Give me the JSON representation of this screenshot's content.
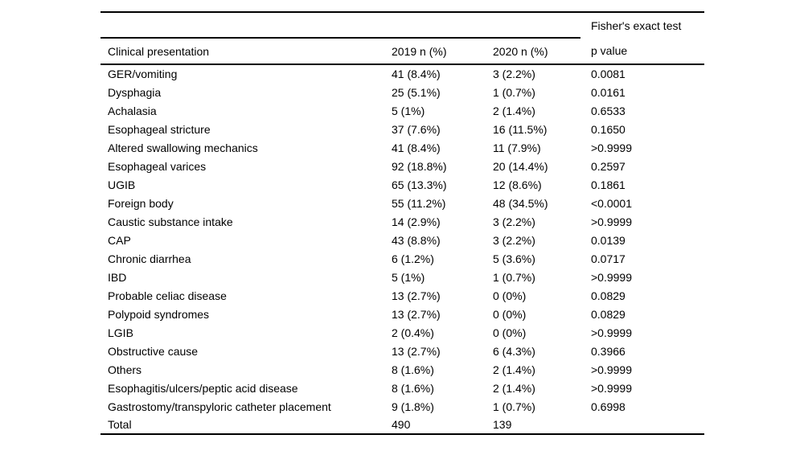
{
  "page": {
    "background_color": "#ffffff",
    "text_color": "#000000",
    "rule_color": "#000000"
  },
  "table": {
    "spanner_label": "Fisher's exact test",
    "columns": [
      "Clinical presentation",
      "2019 n (%)",
      "2020 n (%)",
      "p value"
    ],
    "rows": [
      [
        "GER/vomiting",
        "41 (8.4%)",
        "3 (2.2%)",
        "0.0081"
      ],
      [
        "Dysphagia",
        "25 (5.1%)",
        "1 (0.7%)",
        "0.0161"
      ],
      [
        "Achalasia",
        "5 (1%)",
        "2 (1.4%)",
        "0.6533"
      ],
      [
        "Esophageal stricture",
        "37 (7.6%)",
        "16 (11.5%)",
        "0.1650"
      ],
      [
        "Altered swallowing mechanics",
        "41 (8.4%)",
        "11 (7.9%)",
        ">0.9999"
      ],
      [
        "Esophageal varices",
        "92 (18.8%)",
        "20 (14.4%)",
        "0.2597"
      ],
      [
        "UGIB",
        "65 (13.3%)",
        "12 (8.6%)",
        "0.1861"
      ],
      [
        "Foreign body",
        "55 (11.2%)",
        "48 (34.5%)",
        "<0.0001"
      ],
      [
        "Caustic substance intake",
        "14 (2.9%)",
        "3 (2.2%)",
        ">0.9999"
      ],
      [
        "CAP",
        "43 (8.8%)",
        "3 (2.2%)",
        "0.0139"
      ],
      [
        "Chronic diarrhea",
        "6 (1.2%)",
        "5 (3.6%)",
        "0.0717"
      ],
      [
        "IBD",
        "5 (1%)",
        "1 (0.7%)",
        ">0.9999"
      ],
      [
        "Probable celiac disease",
        "13 (2.7%)",
        "0 (0%)",
        "0.0829"
      ],
      [
        "Polypoid syndromes",
        "13 (2.7%)",
        "0 (0%)",
        "0.0829"
      ],
      [
        "LGIB",
        "2 (0.4%)",
        "0 (0%)",
        ">0.9999"
      ],
      [
        "Obstructive cause",
        "13 (2.7%)",
        "6 (4.3%)",
        "0.3966"
      ],
      [
        "Others",
        "8 (1.6%)",
        "2 (1.4%)",
        ">0.9999"
      ],
      [
        "Esophagitis/ulcers/peptic acid disease",
        "8 (1.6%)",
        "2 (1.4%)",
        ">0.9999"
      ],
      [
        "Gastrostomy/transpyloric catheter placement",
        "9 (1.8%)",
        "1 (0.7%)",
        "0.6998"
      ],
      [
        "Total",
        "490",
        "139",
        ""
      ]
    ]
  }
}
